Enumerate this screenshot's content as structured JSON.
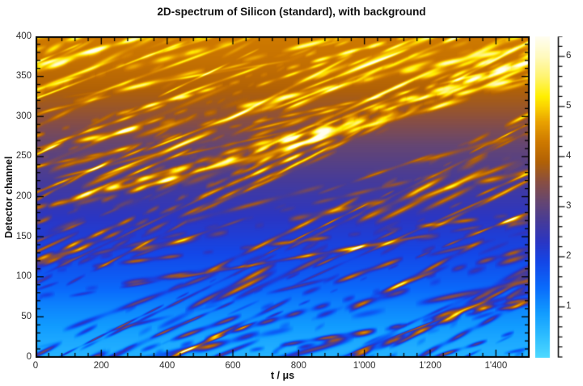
{
  "title": "2D-spectrum of Silicon (standard), with background",
  "axes": {
    "x": {
      "label": "t / μs",
      "min": 0,
      "max": 1500,
      "major_ticks": [
        0,
        200,
        400,
        600,
        800,
        1000,
        1200,
        1400
      ],
      "major_tick_labels": [
        "0",
        "200",
        "400",
        "600",
        "800",
        "1'000",
        "1'200",
        "1'400"
      ],
      "minor_step": 40
    },
    "y": {
      "label": "Detector channel",
      "min": 0,
      "max": 400,
      "major_ticks": [
        0,
        50,
        100,
        150,
        200,
        250,
        300,
        350,
        400
      ],
      "major_tick_labels": [
        "0",
        "50",
        "100",
        "150",
        "200",
        "250",
        "300",
        "350",
        "400"
      ],
      "minor_step": 10
    }
  },
  "colorbar": {
    "min": 0,
    "max": 6.4,
    "major_ticks": [
      1,
      2,
      3,
      4,
      5,
      6
    ],
    "major_tick_labels": [
      "1",
      "2",
      "3",
      "4",
      "5",
      "6"
    ],
    "minor_step": 0.2
  },
  "chart_data": {
    "type": "heatmap",
    "title": "2D-spectrum of Silicon (standard), with background",
    "xlabel": "t / μs",
    "ylabel": "Detector channel",
    "x_range": [
      0,
      1500
    ],
    "y_range": [
      0,
      400
    ],
    "z_range": [
      0,
      6.4
    ],
    "z_meaning": "intensity in colorbar units (log-like scale)",
    "grid": false,
    "legend": "colorbar-right",
    "colormap_stops": [
      [
        0.0,
        "#4ed9ff"
      ],
      [
        0.45,
        "#2cbcff"
      ],
      [
        0.9,
        "#119bff"
      ],
      [
        1.4,
        "#0a6bfc"
      ],
      [
        1.9,
        "#1447e8"
      ],
      [
        2.3,
        "#2b36c4"
      ],
      [
        2.7,
        "#463b9a"
      ],
      [
        3.1,
        "#664672"
      ],
      [
        3.5,
        "#8a4f42"
      ],
      [
        3.9,
        "#b26206"
      ],
      [
        4.3,
        "#cf7a00"
      ],
      [
        4.7,
        "#eaa300"
      ],
      [
        5.0,
        "#fbd300"
      ],
      [
        5.2,
        "#ffef00"
      ],
      [
        5.6,
        "#fff470"
      ],
      [
        6.0,
        "#fffabe"
      ],
      [
        6.4,
        "#fffef2"
      ]
    ],
    "background_profile": [
      [
        0,
        0.55
      ],
      [
        25,
        0.75
      ],
      [
        60,
        1.1
      ],
      [
        100,
        1.6
      ],
      [
        140,
        2.0
      ],
      [
        185,
        2.4
      ],
      [
        225,
        2.75
      ],
      [
        265,
        3.1
      ],
      [
        300,
        3.55
      ],
      [
        340,
        3.95
      ],
      [
        375,
        4.2
      ],
      [
        400,
        4.3
      ]
    ],
    "streaks": {
      "count": 130,
      "families": [
        {
          "share": 0.73,
          "slope_ch_per_us": [
            0.1,
            0.22
          ]
        },
        {
          "share": 0.27,
          "slope_ch_per_us": [
            0.045,
            0.1
          ]
        }
      ],
      "intercept_ch_at_t0": [
        -280,
        440
      ],
      "sigma_ch": [
        0.9,
        2.6
      ],
      "amplitude": [
        0.8,
        2.3
      ],
      "amp_top_attenuation": 0.0015,
      "seed": 42
    },
    "pattern_description": "dense diagonal time-of-flight streaks rising with t, drawn over a vertical cyan→blue→indigo→brown→orange→yellow background gradient; streak highlights reach near-white at top"
  }
}
